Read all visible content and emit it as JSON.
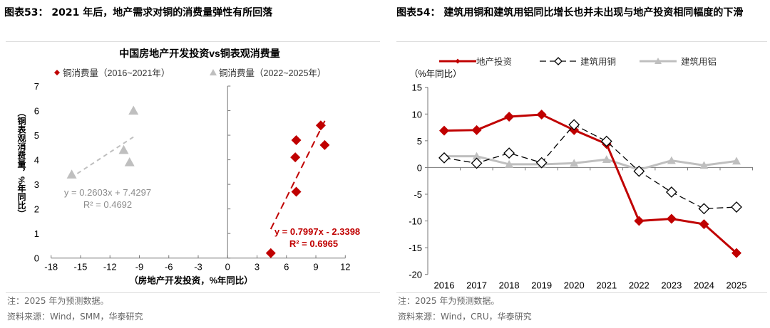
{
  "left": {
    "panel_title": "图表53： 2021 年后，地产需求对铜的消费量弹性有所回落",
    "note": "注：2025 年为预测数据。",
    "source": "资料来源：Wind，SMM，华泰研究"
  },
  "right": {
    "panel_title": "图表54： 建筑用铜和建筑用铝同比增长也并未出现与地产投资相同幅度的下滑",
    "note": "注：2025 年为预测数据。",
    "source": "资料来源：Wind，CRU，华泰研究"
  },
  "chart_data": [
    {
      "type": "scatter",
      "title": "中国房地产开发投资vs铜表观消费量",
      "xlabel": "（房地产开发投资，%年同比）",
      "ylabel": "（铜表观消费量，%年同比）",
      "xlim": [
        -18,
        12
      ],
      "ylim": [
        0,
        7
      ],
      "xticks": [
        "-18",
        "-15",
        "-12",
        "-9",
        "-6",
        "-3",
        "0",
        "3",
        "6",
        "9",
        "12"
      ],
      "yticks": [
        "0",
        "1",
        "2",
        "3",
        "4",
        "5",
        "6",
        "7"
      ],
      "grid": false,
      "legend": "top",
      "series": [
        {
          "name": "铜消费量（2016~2021年）",
          "color": "#c00000",
          "marker": "diamond",
          "x": [
            4.4,
            7.0,
            6.9,
            7.0,
            9.5,
            9.9
          ],
          "y": [
            0.2,
            4.8,
            4.1,
            2.7,
            5.4,
            4.6
          ],
          "trendline": {
            "slope": 0.7997,
            "intercept": -2.3398,
            "x_range": [
              4.4,
              10.0
            ],
            "equation": "y = 0.7997x - 2.3398",
            "r2": "R² = 0.6965"
          }
        },
        {
          "name": "铜消费量（2022~2025年）",
          "color": "#bfbfbf",
          "marker": "triangle",
          "x": [
            -15.9,
            -9.6,
            -10.6,
            -10.0
          ],
          "y": [
            3.4,
            6.0,
            4.4,
            3.9
          ],
          "trendline": {
            "slope": 0.2603,
            "intercept": 7.4297,
            "x_range": [
              -16.0,
              -9.5
            ],
            "equation": "y = 0.2603x + 7.4297",
            "r2": "R² = 0.4692"
          }
        }
      ]
    },
    {
      "type": "line",
      "ylabel": "（%年同比）",
      "categories": [
        "2016",
        "2017",
        "2018",
        "2019",
        "2020",
        "2021",
        "2022",
        "2023",
        "2024",
        "2025"
      ],
      "ylim": [
        -20,
        15
      ],
      "yticks": [
        "15",
        "10",
        "5",
        "0",
        "-5",
        "-10",
        "-15",
        "-20"
      ],
      "grid": false,
      "legend": "top",
      "series": [
        {
          "name": "地产投资",
          "color": "#c00000",
          "style": "solid",
          "marker": "diamond-filled",
          "values": [
            6.9,
            7.0,
            9.5,
            9.9,
            7.0,
            4.4,
            -10.0,
            -9.6,
            -10.6,
            -16.0
          ]
        },
        {
          "name": "建筑用铜",
          "color": "#000000",
          "style": "dashed",
          "marker": "diamond-open",
          "values": [
            1.8,
            0.8,
            2.7,
            0.9,
            8.0,
            4.9,
            -0.7,
            -4.6,
            -7.7,
            -7.4
          ]
        },
        {
          "name": "建筑用铝",
          "color": "#bfbfbf",
          "style": "solid",
          "marker": "triangle",
          "values": [
            2.1,
            2.1,
            0.6,
            0.6,
            0.8,
            1.5,
            -0.4,
            1.3,
            0.4,
            1.2
          ]
        }
      ]
    }
  ]
}
